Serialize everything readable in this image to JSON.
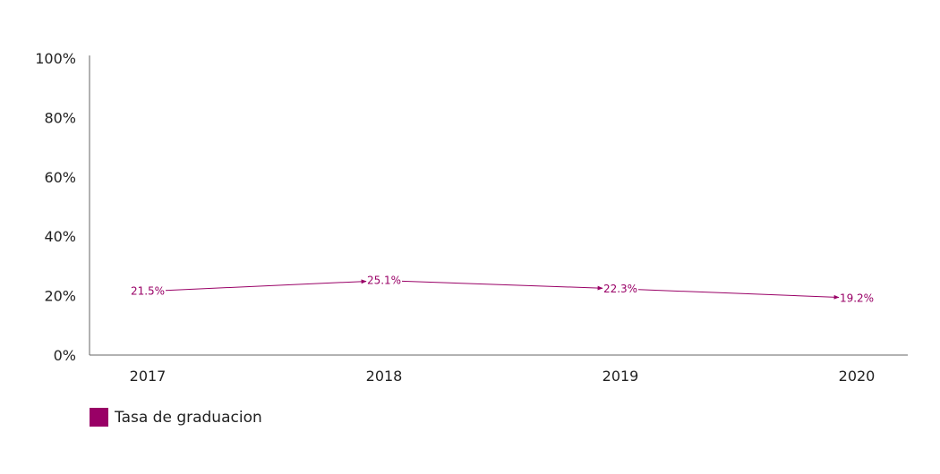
{
  "chart_data": {
    "type": "line",
    "categories": [
      "2017",
      "2018",
      "2019",
      "2020"
    ],
    "series": [
      {
        "name": "Tasa de graduacion",
        "values": [
          21.5,
          25.1,
          22.3,
          19.2
        ],
        "labels": [
          "21.5%",
          "25.1%",
          "22.3%",
          "19.2%"
        ],
        "color": "#990066"
      }
    ],
    "y_ticks": [
      "0%",
      "20%",
      "40%",
      "60%",
      "80%",
      "100%"
    ],
    "ylim": [
      0,
      100
    ],
    "grid": false,
    "legend_position": "bottom-left"
  }
}
